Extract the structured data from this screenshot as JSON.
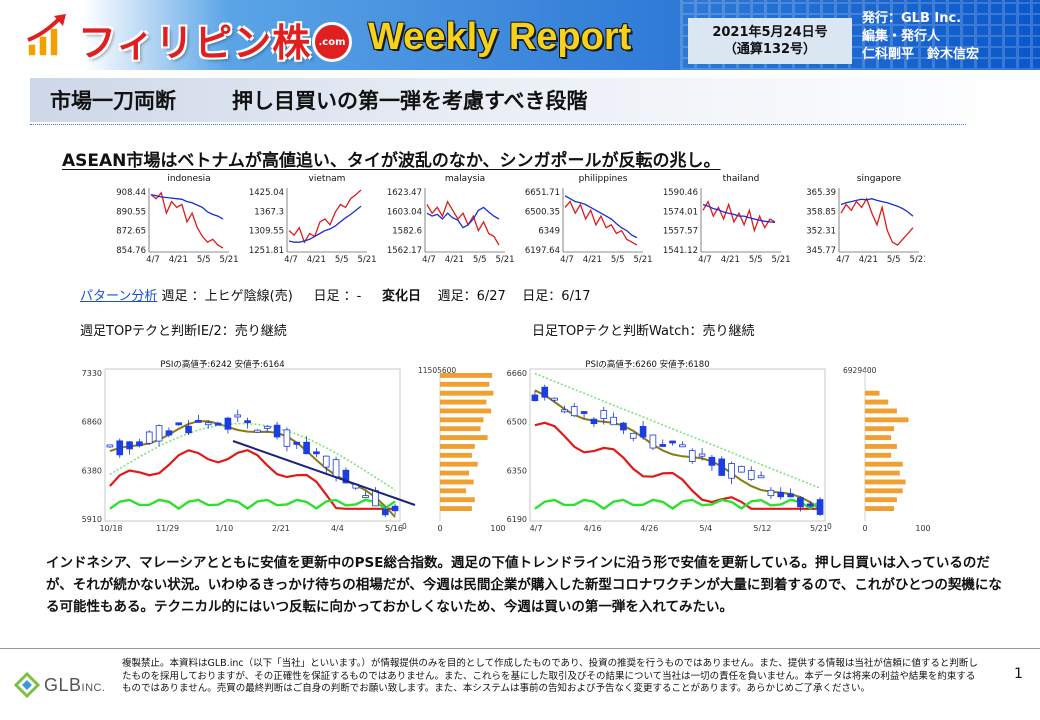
{
  "header": {
    "brand": "フィリピン株",
    "brand_badge": ".com",
    "report_title": "Weekly Report",
    "date": "2021年5月24日号",
    "issue": "（通算132号）",
    "publisher_line1": "発行：GLB Inc.",
    "publisher_line2": "編集・発行人",
    "publisher_line3": "仁科剛平　鈴木信宏"
  },
  "title": {
    "left": "市場一刀両断",
    "right": "押し目買いの第一弾を考慮すべき段階"
  },
  "subtitle": "ASEAN市場はベトナムが高値追い、タイが波乱のなか、シンガポールが反転の兆し。",
  "mini_charts_data": {
    "type": "line",
    "x_tick_labels": [
      "4/7",
      "4/21",
      "5/5",
      "5/21"
    ],
    "series_colors": [
      "#e01a1a",
      "#1a2fd0"
    ],
    "markets": [
      {
        "name": "indonesia",
        "y_tick_labels": [
          "908.44",
          "890.55",
          "872.65",
          "854.76"
        ],
        "red": [
          0.92,
          0.85,
          0.95,
          0.6,
          0.8,
          0.7,
          0.75,
          0.45,
          0.6,
          0.35,
          0.2,
          0.1,
          0.15,
          0.05,
          0.0
        ],
        "blue": [
          0.92,
          0.9,
          0.88,
          0.87,
          0.86,
          0.85,
          0.84,
          0.8,
          0.78,
          0.74,
          0.7,
          0.62,
          0.58,
          0.55,
          0.5
        ]
      },
      {
        "name": "vietnam",
        "y_tick_labels": [
          "1425.04",
          "1367.3",
          "1309.55",
          "1251.81"
        ],
        "red": [
          0.3,
          0.22,
          0.35,
          0.1,
          0.25,
          0.2,
          0.45,
          0.5,
          0.4,
          0.62,
          0.75,
          0.7,
          0.85,
          0.92,
          1.0
        ],
        "blue": [
          0.12,
          0.1,
          0.1,
          0.12,
          0.15,
          0.2,
          0.25,
          0.3,
          0.33,
          0.38,
          0.45,
          0.52,
          0.58,
          0.65,
          0.72
        ]
      },
      {
        "name": "malaysia",
        "y_tick_labels": [
          "1623.47",
          "1603.04",
          "1582.6",
          "1562.17"
        ],
        "red": [
          0.75,
          0.6,
          0.7,
          0.55,
          0.8,
          0.65,
          0.5,
          0.6,
          0.4,
          0.55,
          0.3,
          0.45,
          0.25,
          0.2,
          0.05
        ],
        "blue": [
          0.6,
          0.55,
          0.58,
          0.5,
          0.6,
          0.52,
          0.48,
          0.35,
          0.4,
          0.5,
          0.65,
          0.7,
          0.62,
          0.55,
          0.5
        ]
      },
      {
        "name": "philippines",
        "y_tick_labels": [
          "6651.71",
          "6500.35",
          "6349",
          "6197.64"
        ],
        "red": [
          0.7,
          0.8,
          0.6,
          0.75,
          0.5,
          0.65,
          0.4,
          0.55,
          0.35,
          0.4,
          0.25,
          0.3,
          0.15,
          0.1,
          0.05
        ],
        "blue": [
          0.9,
          0.85,
          0.8,
          0.78,
          0.75,
          0.7,
          0.65,
          0.6,
          0.55,
          0.5,
          0.42,
          0.35,
          0.3,
          0.22,
          0.18
        ]
      },
      {
        "name": "thailand",
        "y_tick_labels": [
          "1590.46",
          "1574.01",
          "1557.57",
          "1541.12"
        ],
        "red": [
          0.65,
          0.8,
          0.55,
          0.7,
          0.5,
          0.75,
          0.45,
          0.6,
          0.4,
          0.65,
          0.3,
          0.55,
          0.35,
          0.5,
          0.45
        ],
        "blue": [
          0.75,
          0.72,
          0.68,
          0.66,
          0.62,
          0.6,
          0.58,
          0.55,
          0.55,
          0.52,
          0.5,
          0.48,
          0.46,
          0.45,
          0.44
        ]
      },
      {
        "name": "singapore",
        "y_tick_labels": [
          "365.39",
          "358.85",
          "352.31",
          "345.77"
        ],
        "red": [
          0.6,
          0.75,
          0.65,
          0.8,
          0.7,
          0.85,
          0.6,
          0.4,
          0.7,
          0.3,
          0.1,
          0.05,
          0.15,
          0.25,
          0.35
        ],
        "blue": [
          0.75,
          0.78,
          0.8,
          0.82,
          0.84,
          0.83,
          0.85,
          0.82,
          0.8,
          0.78,
          0.75,
          0.72,
          0.68,
          0.62,
          0.55
        ]
      }
    ]
  },
  "pattern": {
    "link": "パターン分析",
    "weekly_label": "週足",
    "weekly_value": "：上ヒゲ陰線(売)",
    "daily_label": "日足",
    "daily_value": "：-",
    "change_label": "変化日",
    "change_weekly": "週足：6/27",
    "change_daily": "日足：6/17"
  },
  "judgement": {
    "left": "週足TOPテクと判断IE/2：売り継続",
    "right": "日足TOPテクと判断Watch：売り継続"
  },
  "big_charts": {
    "left": {
      "psi": "PSIの高値予:6242 安値予:6164",
      "y_labels": [
        "7330",
        "6860",
        "6380",
        "5910"
      ],
      "x_labels": [
        "10/18",
        "11/29",
        "1/10",
        "2/21",
        "4/4",
        "5/16"
      ],
      "vol_top": "11505600",
      "vol_bottom": "0",
      "hist_axis": [
        "0",
        "100"
      ],
      "hist_values": [
        0.9,
        0.85,
        0.92,
        0.8,
        0.88,
        0.75,
        0.7,
        0.82,
        0.6,
        0.55,
        0.65,
        0.5,
        0.58,
        0.45,
        0.6,
        0.55
      ]
    },
    "right": {
      "psi": "PSIの高値予:6260 安値予:6180",
      "y_labels": [
        "6660",
        "6500",
        "6350",
        "6190"
      ],
      "x_labels": [
        "4/7",
        "4/16",
        "4/26",
        "5/4",
        "5/12",
        "5/21"
      ],
      "vol_top": "6929400",
      "vol_bottom": "0",
      "hist_axis": [
        "0",
        "100"
      ],
      "hist_values": [
        0.0,
        0.0,
        0.25,
        0.4,
        0.55,
        0.75,
        0.5,
        0.45,
        0.55,
        0.45,
        0.65,
        0.6,
        0.7,
        0.65,
        0.55,
        0.5
      ]
    }
  },
  "body": "インドネシア、マレーシアとともに安値を更新中のPSE総合指数。週足の下値トレンドラインに沿う形で安値を更新している。押し目買いは入っているのだが、それが続かない状況。いわゆるきっかけ待ちの相場だが、今週は民間企業が購入した新型コロナワクチンが大量に到着するので、これがひとつの契機になる可能性もある。テクニカル的にはいつ反転に向かっておかしくないため、今週は買いの第一弾を入れてみたい。",
  "footer": {
    "company_main": "GLB",
    "company_suffix": "INC.",
    "disclaimer": "複製禁止。本資料はGLB.inc（以下「当社」といいます。）が情報提供のみを目的として作成したものであり、投資の推奨を行うものではありません。また、提供する情報は当社が信頼に値すると判断したものを採用しておりますが、その正確性を保証するものではありません。また、これらを基にした取引及びその結果について当社は一切の責任を負いません。本データは将来の利益や結果を約束するものではありません。売買の最終判断はご自身の判断でお願い致します。また、本システムは事前の告知および予告なく変更することがあります。あらかじめご了承ください。",
    "page": "1"
  }
}
